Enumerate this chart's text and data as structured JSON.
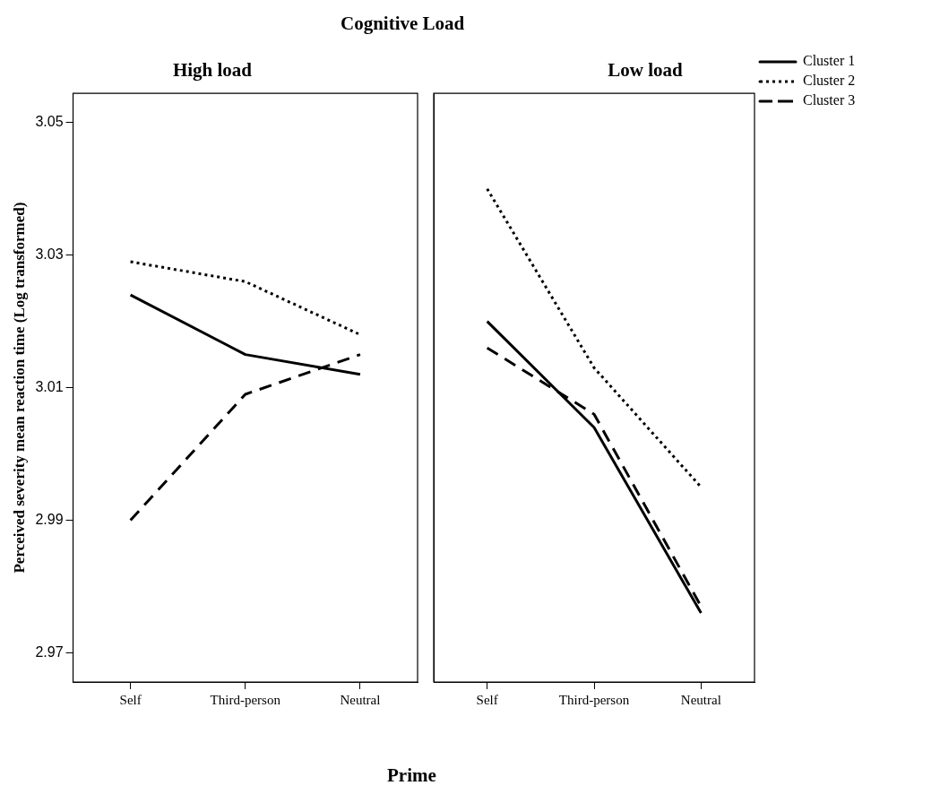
{
  "chart_data": [
    {
      "type": "line",
      "title": "High load",
      "annotations": [
        "Cognitive Load"
      ],
      "xlabel": "Prime",
      "ylabel": "Perceived severity mean reaction time (Log transformed)",
      "categories": [
        "Self",
        "Third-person",
        "Neutral"
      ],
      "ylim": [
        2.9656,
        3.0544
      ],
      "yticks": [
        2.97,
        2.99,
        3.01,
        3.03,
        3.05
      ],
      "grid": false,
      "legend": false,
      "marker": "none",
      "series": [
        {
          "color": "#000000",
          "line_style": "solid",
          "values": [
            3.024,
            3.015,
            3.012
          ]
        },
        {
          "color": "#000000",
          "line_style": "dotted",
          "values": [
            3.029,
            3.026,
            3.018
          ]
        },
        {
          "color": "#000000",
          "line_style": "dashed",
          "values": [
            2.99,
            3.009,
            3.015
          ]
        }
      ]
    },
    {
      "type": "line",
      "title": "Low load",
      "categories": [
        "Self",
        "Third-person",
        "Neutral"
      ],
      "ylim": [
        2.9656,
        3.0544
      ],
      "tick_labels": "x",
      "grid": false,
      "legend": "top right",
      "marker": "none",
      "series": [
        {
          "name": "Cluster 1",
          "color": "#000000",
          "line_style": "solid",
          "values": [
            3.02,
            3.004,
            2.976
          ]
        },
        {
          "name": "Cluster 2",
          "color": "#000000",
          "line_style": "dotted",
          "values": [
            3.04,
            3.013,
            2.995
          ]
        },
        {
          "name": "Cluster 3",
          "color": "#000000",
          "line_style": "dashed",
          "values": [
            3.016,
            3.006,
            2.977
          ]
        }
      ]
    }
  ]
}
